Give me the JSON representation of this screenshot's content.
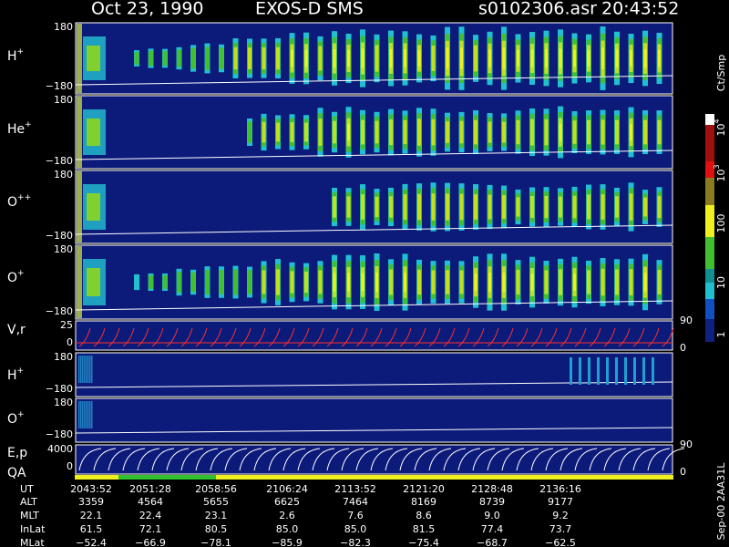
{
  "header": {
    "date": "Oct 23, 1990",
    "instrument": "EXOS-D SMS",
    "file": "s0102306.asr",
    "time": "20:43:52"
  },
  "panels": [
    {
      "label": {
        "base": "H",
        "sup": "+"
      },
      "top": "180",
      "bottom": "−180"
    },
    {
      "label": {
        "base": "He",
        "sup": "+"
      },
      "top": "180",
      "bottom": "−180"
    },
    {
      "label": {
        "base": "O",
        "sup": "++"
      },
      "top": "180",
      "bottom": "−180"
    },
    {
      "label": {
        "base": "O",
        "sup": "+"
      },
      "top": "180",
      "bottom": "−180"
    },
    {
      "label": {
        "base": "V,r"
      },
      "top": "25",
      "bottom": "0",
      "right_top": "90",
      "right_bottom": "0"
    },
    {
      "label": {
        "base": "H",
        "sup": "+"
      },
      "top": "180",
      "bottom": "−180"
    },
    {
      "label": {
        "base": "O",
        "sup": "+"
      },
      "top": "180",
      "bottom": "−180"
    },
    {
      "label": {
        "base": "E,p"
      },
      "label2": "QA",
      "top": "4000",
      "bottom": "0",
      "right_top": "90",
      "right_bottom": "0"
    }
  ],
  "colorbar": {
    "unit": "Ct/Smp",
    "labels": [
      {
        "base": "10",
        "sup": "4"
      },
      {
        "base": "10",
        "sup": "3"
      },
      {
        "base": "100"
      },
      {
        "base": "10"
      },
      {
        "base": "1"
      }
    ]
  },
  "footer_code": "Sep-00  2AA31L",
  "ephemeris": {
    "rows": [
      {
        "name": "UT",
        "values": [
          "2043:52",
          "2051:28",
          "2058:56",
          "2106:24",
          "2113:52",
          "2121:20",
          "2128:48",
          "2136:16"
        ]
      },
      {
        "name": "ALT",
        "values": [
          "3359",
          "4564",
          "5655",
          "6625",
          "7464",
          "8169",
          "8739",
          "9177"
        ]
      },
      {
        "name": "MLT",
        "values": [
          "22.1",
          "22.4",
          "23.1",
          "2.6",
          "7.6",
          "8.6",
          "9.0",
          "9.2"
        ]
      },
      {
        "name": "InLat",
        "values": [
          "61.5",
          "72.1",
          "80.5",
          "85.0",
          "85.0",
          "81.5",
          "77.4",
          "73.7"
        ]
      },
      {
        "name": "MLat",
        "values": [
          "−52.4",
          "−66.9",
          "−78.1",
          "−85.9",
          "−82.3",
          "−75.4",
          "−68.7",
          "−62.5"
        ]
      }
    ]
  }
}
